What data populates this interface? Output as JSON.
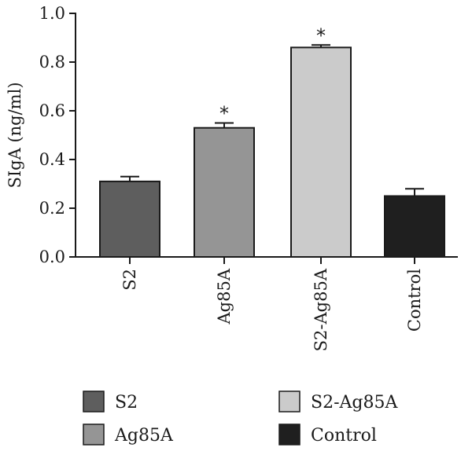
{
  "chart_data": {
    "type": "bar",
    "ylabel": "SIgA (ng/ml)",
    "ylim": [
      0,
      1.0
    ],
    "yticks": [
      "0.0",
      "0.2",
      "0.4",
      "0.6",
      "0.8",
      "1.0"
    ],
    "categories": [
      "S2",
      "Ag85A",
      "S2-Ag85A",
      "Control"
    ],
    "values": [
      0.31,
      0.53,
      0.86,
      0.25
    ],
    "errors": [
      0.02,
      0.02,
      0.01,
      0.03
    ],
    "significance": [
      "",
      "*",
      "*",
      ""
    ],
    "colors": [
      "#5e5e5e",
      "#959595",
      "#cbcbcb",
      "#1f1f1f"
    ],
    "legend": [
      {
        "label": "S2",
        "color": "#5e5e5e"
      },
      {
        "label": "S2-Ag85A",
        "color": "#cbcbcb"
      },
      {
        "label": "Ag85A",
        "color": "#959595"
      },
      {
        "label": "Control",
        "color": "#1f1f1f"
      }
    ],
    "grid": false
  }
}
